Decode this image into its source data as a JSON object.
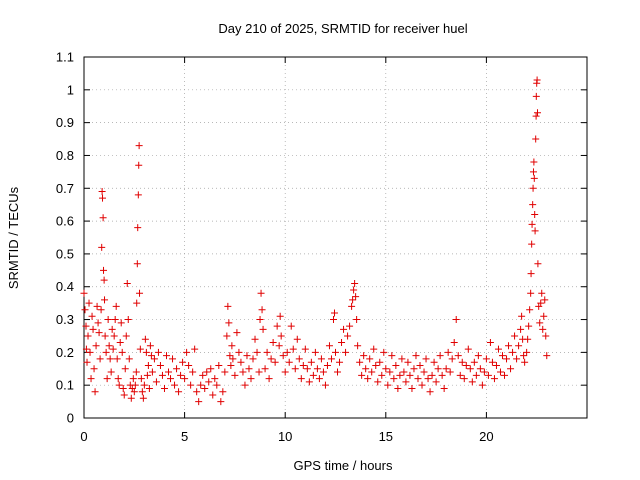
{
  "chart_data": {
    "type": "scatter",
    "title": "Day 210 of 2025, SRMTID for receiver huel",
    "xlabel": "GPS time / hours",
    "ylabel": "SRMTID / TECUs",
    "xlim": [
      0,
      25
    ],
    "ylim": [
      0,
      1.1
    ],
    "xticks": [
      0,
      5,
      10,
      15,
      20
    ],
    "yticks": [
      0,
      0.1,
      0.2,
      0.3,
      0.4,
      0.5,
      0.6,
      0.7,
      0.8,
      0.9,
      1,
      1.1
    ],
    "ytick_labels": [
      "0",
      "0.1",
      "0.2",
      "0.3",
      "0.4",
      "0.5",
      "0.6",
      "0.7",
      "0.8",
      "0.9",
      "1",
      "1.1"
    ],
    "grid": true,
    "marker": "+",
    "color": "#e00000",
    "series": [
      {
        "name": "SRMTID",
        "points": [
          [
            0.0,
            0.38
          ],
          [
            0.05,
            0.33
          ],
          [
            0.1,
            0.28
          ],
          [
            0.12,
            0.21
          ],
          [
            0.15,
            0.17
          ],
          [
            0.2,
            0.25
          ],
          [
            0.25,
            0.35
          ],
          [
            0.3,
            0.2
          ],
          [
            0.35,
            0.12
          ],
          [
            0.4,
            0.31
          ],
          [
            0.45,
            0.27
          ],
          [
            0.5,
            0.15
          ],
          [
            0.55,
            0.08
          ],
          [
            0.6,
            0.22
          ],
          [
            0.65,
            0.34
          ],
          [
            0.7,
            0.29
          ],
          [
            0.75,
            0.26
          ],
          [
            0.8,
            0.18
          ],
          [
            0.85,
            0.33
          ],
          [
            0.88,
            0.52
          ],
          [
            0.9,
            0.69
          ],
          [
            0.92,
            0.67
          ],
          [
            0.95,
            0.61
          ],
          [
            0.97,
            0.45
          ],
          [
            1.0,
            0.42
          ],
          [
            1.02,
            0.36
          ],
          [
            1.05,
            0.25
          ],
          [
            1.1,
            0.2
          ],
          [
            1.15,
            0.12
          ],
          [
            1.2,
            0.3
          ],
          [
            1.25,
            0.22
          ],
          [
            1.3,
            0.18
          ],
          [
            1.35,
            0.14
          ],
          [
            1.4,
            0.27
          ],
          [
            1.45,
            0.21
          ],
          [
            1.5,
            0.25
          ],
          [
            1.55,
            0.3
          ],
          [
            1.6,
            0.34
          ],
          [
            1.65,
            0.18
          ],
          [
            1.7,
            0.12
          ],
          [
            1.75,
            0.1
          ],
          [
            1.8,
            0.23
          ],
          [
            1.85,
            0.29
          ],
          [
            1.9,
            0.2
          ],
          [
            1.95,
            0.09
          ],
          [
            2.0,
            0.07
          ],
          [
            2.05,
            0.15
          ],
          [
            2.1,
            0.25
          ],
          [
            2.15,
            0.41
          ],
          [
            2.2,
            0.3
          ],
          [
            2.25,
            0.18
          ],
          [
            2.3,
            0.1
          ],
          [
            2.35,
            0.06
          ],
          [
            2.4,
            0.09
          ],
          [
            2.45,
            0.12
          ],
          [
            2.5,
            0.08
          ],
          [
            2.55,
            0.1
          ],
          [
            2.6,
            0.14
          ],
          [
            2.62,
            0.35
          ],
          [
            2.65,
            0.47
          ],
          [
            2.67,
            0.58
          ],
          [
            2.7,
            0.68
          ],
          [
            2.72,
            0.77
          ],
          [
            2.74,
            0.83
          ],
          [
            2.76,
            0.38
          ],
          [
            2.8,
            0.21
          ],
          [
            2.85,
            0.12
          ],
          [
            2.9,
            0.08
          ],
          [
            2.95,
            0.06
          ],
          [
            3.0,
            0.1
          ],
          [
            3.05,
            0.24
          ],
          [
            3.1,
            0.2
          ],
          [
            3.15,
            0.13
          ],
          [
            3.2,
            0.16
          ],
          [
            3.25,
            0.09
          ],
          [
            3.3,
            0.22
          ],
          [
            3.35,
            0.19
          ],
          [
            3.4,
            0.14
          ],
          [
            3.5,
            0.18
          ],
          [
            3.6,
            0.11
          ],
          [
            3.7,
            0.2
          ],
          [
            3.8,
            0.16
          ],
          [
            3.9,
            0.13
          ],
          [
            4.0,
            0.09
          ],
          [
            4.1,
            0.19
          ],
          [
            4.2,
            0.14
          ],
          [
            4.3,
            0.12
          ],
          [
            4.4,
            0.18
          ],
          [
            4.5,
            0.1
          ],
          [
            4.6,
            0.15
          ],
          [
            4.7,
            0.08
          ],
          [
            4.8,
            0.13
          ],
          [
            4.9,
            0.17
          ],
          [
            5.0,
            0.12
          ],
          [
            5.1,
            0.2
          ],
          [
            5.2,
            0.16
          ],
          [
            5.3,
            0.1
          ],
          [
            5.4,
            0.14
          ],
          [
            5.5,
            0.21
          ],
          [
            5.6,
            0.08
          ],
          [
            5.7,
            0.05
          ],
          [
            5.8,
            0.1
          ],
          [
            5.9,
            0.13
          ],
          [
            6.0,
            0.09
          ],
          [
            6.1,
            0.14
          ],
          [
            6.2,
            0.11
          ],
          [
            6.3,
            0.15
          ],
          [
            6.4,
            0.07
          ],
          [
            6.5,
            0.12
          ],
          [
            6.6,
            0.1
          ],
          [
            6.7,
            0.16
          ],
          [
            6.8,
            0.05
          ],
          [
            6.9,
            0.08
          ],
          [
            7.0,
            0.14
          ],
          [
            7.1,
            0.25
          ],
          [
            7.15,
            0.34
          ],
          [
            7.2,
            0.29
          ],
          [
            7.25,
            0.19
          ],
          [
            7.3,
            0.16
          ],
          [
            7.35,
            0.22
          ],
          [
            7.4,
            0.18
          ],
          [
            7.5,
            0.13
          ],
          [
            7.6,
            0.26
          ],
          [
            7.7,
            0.2
          ],
          [
            7.8,
            0.17
          ],
          [
            7.9,
            0.14
          ],
          [
            8.0,
            0.1
          ],
          [
            8.1,
            0.19
          ],
          [
            8.2,
            0.15
          ],
          [
            8.3,
            0.12
          ],
          [
            8.4,
            0.18
          ],
          [
            8.5,
            0.24
          ],
          [
            8.6,
            0.2
          ],
          [
            8.7,
            0.14
          ],
          [
            8.75,
            0.3
          ],
          [
            8.8,
            0.38
          ],
          [
            8.85,
            0.33
          ],
          [
            8.9,
            0.27
          ],
          [
            9.0,
            0.15
          ],
          [
            9.1,
            0.2
          ],
          [
            9.2,
            0.12
          ],
          [
            9.3,
            0.18
          ],
          [
            9.4,
            0.23
          ],
          [
            9.5,
            0.17
          ],
          [
            9.6,
            0.28
          ],
          [
            9.7,
            0.22
          ],
          [
            9.75,
            0.31
          ],
          [
            9.8,
            0.25
          ],
          [
            9.9,
            0.19
          ],
          [
            10.0,
            0.14
          ],
          [
            10.1,
            0.2
          ],
          [
            10.2,
            0.17
          ],
          [
            10.3,
            0.28
          ],
          [
            10.4,
            0.21
          ],
          [
            10.5,
            0.15
          ],
          [
            10.6,
            0.24
          ],
          [
            10.7,
            0.18
          ],
          [
            10.8,
            0.12
          ],
          [
            10.9,
            0.16
          ],
          [
            11.0,
            0.21
          ],
          [
            11.1,
            0.15
          ],
          [
            11.2,
            0.11
          ],
          [
            11.3,
            0.17
          ],
          [
            11.4,
            0.13
          ],
          [
            11.5,
            0.2
          ],
          [
            11.6,
            0.15
          ],
          [
            11.7,
            0.12
          ],
          [
            11.8,
            0.18
          ],
          [
            11.9,
            0.14
          ],
          [
            12.0,
            0.1
          ],
          [
            12.1,
            0.16
          ],
          [
            12.2,
            0.22
          ],
          [
            12.3,
            0.18
          ],
          [
            12.4,
            0.3
          ],
          [
            12.45,
            0.32
          ],
          [
            12.5,
            0.2
          ],
          [
            12.6,
            0.14
          ],
          [
            12.7,
            0.17
          ],
          [
            12.8,
            0.23
          ],
          [
            12.9,
            0.27
          ],
          [
            13.0,
            0.2
          ],
          [
            13.1,
            0.25
          ],
          [
            13.2,
            0.28
          ],
          [
            13.3,
            0.34
          ],
          [
            13.35,
            0.36
          ],
          [
            13.4,
            0.39
          ],
          [
            13.45,
            0.41
          ],
          [
            13.5,
            0.37
          ],
          [
            13.55,
            0.3
          ],
          [
            13.6,
            0.22
          ],
          [
            13.7,
            0.17
          ],
          [
            13.8,
            0.13
          ],
          [
            13.9,
            0.19
          ],
          [
            14.0,
            0.15
          ],
          [
            14.1,
            0.12
          ],
          [
            14.2,
            0.18
          ],
          [
            14.3,
            0.14
          ],
          [
            14.4,
            0.21
          ],
          [
            14.5,
            0.16
          ],
          [
            14.6,
            0.11
          ],
          [
            14.7,
            0.17
          ],
          [
            14.8,
            0.13
          ],
          [
            14.9,
            0.2
          ],
          [
            15.0,
            0.15
          ],
          [
            15.1,
            0.1
          ],
          [
            15.2,
            0.14
          ],
          [
            15.3,
            0.19
          ],
          [
            15.4,
            0.12
          ],
          [
            15.5,
            0.16
          ],
          [
            15.6,
            0.09
          ],
          [
            15.7,
            0.13
          ],
          [
            15.8,
            0.18
          ],
          [
            15.9,
            0.14
          ],
          [
            16.0,
            0.11
          ],
          [
            16.1,
            0.17
          ],
          [
            16.2,
            0.13
          ],
          [
            16.3,
            0.09
          ],
          [
            16.4,
            0.15
          ],
          [
            16.5,
            0.19
          ],
          [
            16.6,
            0.12
          ],
          [
            16.7,
            0.16
          ],
          [
            16.8,
            0.1
          ],
          [
            16.9,
            0.14
          ],
          [
            17.0,
            0.18
          ],
          [
            17.1,
            0.12
          ],
          [
            17.2,
            0.08
          ],
          [
            17.3,
            0.13
          ],
          [
            17.4,
            0.17
          ],
          [
            17.5,
            0.11
          ],
          [
            17.6,
            0.15
          ],
          [
            17.7,
            0.19
          ],
          [
            17.8,
            0.13
          ],
          [
            17.9,
            0.09
          ],
          [
            18.0,
            0.15
          ],
          [
            18.1,
            0.2
          ],
          [
            18.2,
            0.14
          ],
          [
            18.3,
            0.18
          ],
          [
            18.4,
            0.23
          ],
          [
            18.5,
            0.3
          ],
          [
            18.6,
            0.19
          ],
          [
            18.7,
            0.13
          ],
          [
            18.8,
            0.17
          ],
          [
            18.9,
            0.12
          ],
          [
            19.0,
            0.16
          ],
          [
            19.1,
            0.21
          ],
          [
            19.2,
            0.15
          ],
          [
            19.3,
            0.11
          ],
          [
            19.4,
            0.17
          ],
          [
            19.5,
            0.13
          ],
          [
            19.6,
            0.19
          ],
          [
            19.7,
            0.15
          ],
          [
            19.8,
            0.1
          ],
          [
            19.9,
            0.14
          ],
          [
            20.0,
            0.18
          ],
          [
            20.1,
            0.13
          ],
          [
            20.2,
            0.23
          ],
          [
            20.3,
            0.17
          ],
          [
            20.4,
            0.12
          ],
          [
            20.5,
            0.16
          ],
          [
            20.6,
            0.21
          ],
          [
            20.7,
            0.14
          ],
          [
            20.8,
            0.19
          ],
          [
            20.9,
            0.13
          ],
          [
            21.0,
            0.18
          ],
          [
            21.1,
            0.22
          ],
          [
            21.2,
            0.15
          ],
          [
            21.3,
            0.2
          ],
          [
            21.4,
            0.25
          ],
          [
            21.5,
            0.18
          ],
          [
            21.6,
            0.22
          ],
          [
            21.7,
            0.27
          ],
          [
            21.75,
            0.31
          ],
          [
            21.8,
            0.24
          ],
          [
            21.85,
            0.19
          ],
          [
            21.9,
            0.17
          ],
          [
            22.0,
            0.2
          ],
          [
            22.05,
            0.24
          ],
          [
            22.1,
            0.28
          ],
          [
            22.15,
            0.33
          ],
          [
            22.2,
            0.38
          ],
          [
            22.22,
            0.44
          ],
          [
            22.25,
            0.53
          ],
          [
            22.27,
            0.59
          ],
          [
            22.3,
            0.65
          ],
          [
            22.32,
            0.7
          ],
          [
            22.34,
            0.75
          ],
          [
            22.36,
            0.78
          ],
          [
            22.38,
            0.73
          ],
          [
            22.4,
            0.62
          ],
          [
            22.42,
            0.57
          ],
          [
            22.45,
            0.85
          ],
          [
            22.47,
            0.92
          ],
          [
            22.48,
            0.98
          ],
          [
            22.5,
            1.02
          ],
          [
            22.52,
            1.03
          ],
          [
            22.54,
            0.93
          ],
          [
            22.56,
            0.47
          ],
          [
            22.6,
            0.34
          ],
          [
            22.65,
            0.29
          ],
          [
            22.7,
            0.35
          ],
          [
            22.75,
            0.38
          ],
          [
            22.8,
            0.27
          ],
          [
            22.85,
            0.31
          ],
          [
            22.9,
            0.36
          ],
          [
            22.95,
            0.25
          ],
          [
            23.0,
            0.19
          ]
        ]
      }
    ]
  }
}
